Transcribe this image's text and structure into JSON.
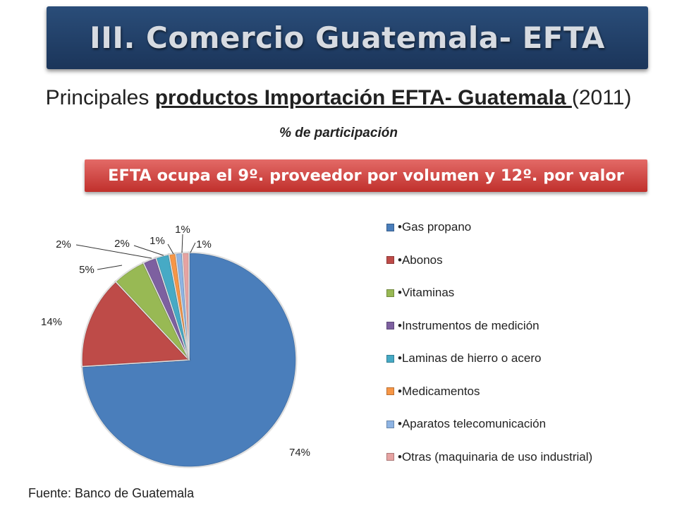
{
  "slide": {
    "title": "III.  Comercio  Guatemala- EFTA",
    "subtitle_prefix": "Principales ",
    "subtitle_underlined": "productos Importación EFTA- Guatemala ",
    "subtitle_suffix": "(2011)",
    "unit_note": "% de participación",
    "highlight": "EFTA ocupa el 9º. proveedor por volumen y 12º. por valor",
    "source": "Fuente:  Banco de Guatemala"
  },
  "chart_data": {
    "type": "pie",
    "title": "",
    "legend_position": "right",
    "slices": [
      {
        "label": "•Gas propano",
        "value": 74,
        "display": "74%",
        "color": "#4a7ebb"
      },
      {
        "label": "•Abonos",
        "value": 14,
        "display": "14%",
        "color": "#be4b48"
      },
      {
        "label": "•Vitaminas",
        "value": 5,
        "display": "5%",
        "color": "#98b954"
      },
      {
        "label": "•Instrumentos de medición",
        "value": 2,
        "display": "2%",
        "color": "#7d60a0"
      },
      {
        "label": "•Laminas de hierro o acero",
        "value": 2,
        "display": "2%",
        "color": "#46aac5"
      },
      {
        "label": "•Medicamentos",
        "value": 1,
        "display": "1%",
        "color": "#f79646"
      },
      {
        "label": "•Aparatos telecomunicación",
        "value": 1,
        "display": "1%",
        "color": "#8eb4e3"
      },
      {
        "label": "•Otras (maquinaria de uso industrial)",
        "value": 1,
        "display": "1%",
        "color": "#e6a3a2"
      }
    ]
  }
}
